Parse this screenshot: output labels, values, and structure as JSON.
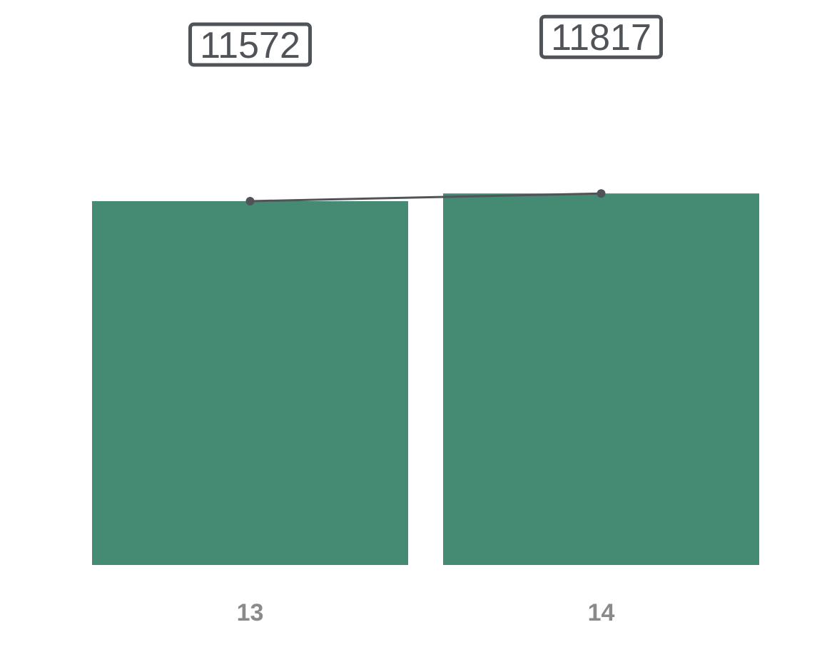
{
  "chart_data": {
    "type": "bar",
    "categories": [
      "13",
      "14"
    ],
    "series": [
      {
        "values": [
          11572,
          11817
        ]
      }
    ],
    "data_labels": [
      "11572",
      "11817"
    ],
    "overlay_line": true,
    "ylim": [
      0,
      13000
    ],
    "xlabel": "",
    "ylabel": "",
    "grid": false,
    "legend": "none",
    "colors": {
      "bar": "#458a73",
      "line": "#505459",
      "tick_label": "#8a8a8a",
      "data_label": "#505459"
    }
  }
}
